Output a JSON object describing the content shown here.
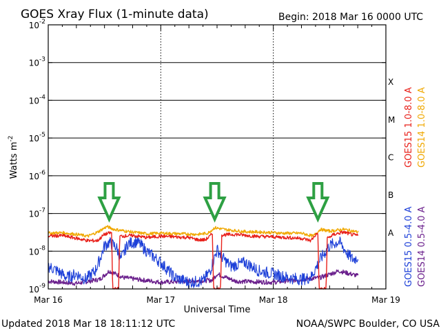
{
  "header": {
    "title": "GOES Xray Flux (1-minute data)",
    "begin": "Begin:  2018 Mar 16 0000 UTC"
  },
  "footer": {
    "updated": "Updated 2018 Mar 18 18:11:12 UTC",
    "source": "NOAA/SWPC Boulder, CO USA"
  },
  "chart_data": {
    "type": "line",
    "title": "GOES Xray Flux (1-minute data)",
    "xlabel": "Universal Time",
    "ylabel": "Watts m",
    "ylabel_exponent": "-2",
    "yscale": "log",
    "ylim": [
      1e-09,
      0.01
    ],
    "xlim": [
      "2018-03-16T00:00",
      "2018-03-19T00:00"
    ],
    "x_ticks": [
      {
        "t": "2018-03-16T00:00",
        "label": "Mar 16"
      },
      {
        "t": "2018-03-17T00:00",
        "label": "Mar 17"
      },
      {
        "t": "2018-03-18T00:00",
        "label": "Mar 18"
      },
      {
        "t": "2018-03-19T00:00",
        "label": "Mar 19"
      }
    ],
    "y_ticks": [
      {
        "v": 0.01,
        "base": "10",
        "exp": "-2"
      },
      {
        "v": 0.001,
        "base": "10",
        "exp": "-3"
      },
      {
        "v": 0.0001,
        "base": "10",
        "exp": "-4"
      },
      {
        "v": 1e-05,
        "base": "10",
        "exp": "-5"
      },
      {
        "v": 1e-06,
        "base": "10",
        "exp": "-6"
      },
      {
        "v": 1e-07,
        "base": "10",
        "exp": "-7"
      },
      {
        "v": 1e-08,
        "base": "10",
        "exp": "-8"
      },
      {
        "v": 1e-09,
        "base": "10",
        "exp": "-9"
      }
    ],
    "flare_classes": [
      {
        "label": "X",
        "lower": 0.0001,
        "upper": 0.001
      },
      {
        "label": "M",
        "lower": 1e-05,
        "upper": 0.0001
      },
      {
        "label": "C",
        "lower": 1e-06,
        "upper": 1e-05
      },
      {
        "label": "B",
        "lower": 1e-07,
        "upper": 1e-06
      },
      {
        "label": "A",
        "lower": 1e-08,
        "upper": 1e-07
      }
    ],
    "grid": "horizontal lines at each decade, dotted vertical lines at each day",
    "legend_placement": "right, vertical text",
    "arrows": [
      {
        "t": "2018-03-16T13:00",
        "color": "#2ea043"
      },
      {
        "t": "2018-03-17T11:30",
        "color": "#2ea043"
      },
      {
        "t": "2018-03-18T09:30",
        "color": "#2ea043"
      }
    ],
    "series": [
      {
        "name": "GOES15 1.0-8.0 A",
        "color": "#e8201a",
        "points": [
          [
            "2018-03-16T00:00",
            2.5e-08
          ],
          [
            "2018-03-16T03:00",
            2.6e-08
          ],
          [
            "2018-03-16T06:00",
            2.2e-08
          ],
          [
            "2018-03-16T08:30",
            1.9e-08
          ],
          [
            "2018-03-16T10:30",
            1.9e-08
          ],
          [
            "2018-03-16T12:00",
            2.8e-08
          ],
          [
            "2018-03-16T13:30",
            3.1e-08
          ],
          [
            "2018-03-16T13:45",
            1e-09
          ],
          [
            "2018-03-16T15:00",
            1e-09
          ],
          [
            "2018-03-16T15:15",
            2.5e-08
          ],
          [
            "2018-03-16T18:00",
            2.6e-08
          ],
          [
            "2018-03-16T21:00",
            2.3e-08
          ],
          [
            "2018-03-17T00:00",
            2.5e-08
          ],
          [
            "2018-03-17T03:00",
            2.4e-08
          ],
          [
            "2018-03-17T06:00",
            2.3e-08
          ],
          [
            "2018-03-17T08:00",
            2e-08
          ],
          [
            "2018-03-17T09:30",
            2e-08
          ],
          [
            "2018-03-17T10:30",
            2.5e-08
          ],
          [
            "2018-03-17T11:00",
            3e-08
          ],
          [
            "2018-03-17T11:15",
            1e-09
          ],
          [
            "2018-03-17T12:45",
            1e-09
          ],
          [
            "2018-03-17T13:00",
            2.7e-08
          ],
          [
            "2018-03-17T16:00",
            2.8e-08
          ],
          [
            "2018-03-17T20:00",
            2.5e-08
          ],
          [
            "2018-03-18T00:00",
            2.4e-08
          ],
          [
            "2018-03-18T03:00",
            2.3e-08
          ],
          [
            "2018-03-18T06:00",
            2.2e-08
          ],
          [
            "2018-03-18T08:00",
            1.9e-08
          ],
          [
            "2018-03-18T09:00",
            2.7e-08
          ],
          [
            "2018-03-18T09:30",
            3e-08
          ],
          [
            "2018-03-18T09:45",
            1e-09
          ],
          [
            "2018-03-18T11:15",
            1e-09
          ],
          [
            "2018-03-18T11:30",
            2.2e-08
          ],
          [
            "2018-03-18T13:00",
            2.8e-08
          ],
          [
            "2018-03-18T15:00",
            3.2e-08
          ],
          [
            "2018-03-18T17:00",
            2.7e-08
          ],
          [
            "2018-03-18T18:10",
            2.6e-08
          ]
        ]
      },
      {
        "name": "GOES14 1.0-8.0 A",
        "color": "#f0a800",
        "points": [
          [
            "2018-03-16T00:00",
            3e-08
          ],
          [
            "2018-03-16T03:00",
            3.1e-08
          ],
          [
            "2018-03-16T06:00",
            2.8e-08
          ],
          [
            "2018-03-16T08:30",
            2.5e-08
          ],
          [
            "2018-03-16T10:30",
            3.2e-08
          ],
          [
            "2018-03-16T12:30",
            4.5e-08
          ],
          [
            "2018-03-16T14:00",
            3.8e-08
          ],
          [
            "2018-03-16T18:00",
            3.2e-08
          ],
          [
            "2018-03-16T21:00",
            2.9e-08
          ],
          [
            "2018-03-17T00:00",
            3e-08
          ],
          [
            "2018-03-17T04:00",
            2.9e-08
          ],
          [
            "2018-03-17T08:00",
            2.8e-08
          ],
          [
            "2018-03-17T10:00",
            3e-08
          ],
          [
            "2018-03-17T11:30",
            4.2e-08
          ],
          [
            "2018-03-17T14:00",
            3.7e-08
          ],
          [
            "2018-03-17T18:00",
            3.3e-08
          ],
          [
            "2018-03-17T22:00",
            3.2e-08
          ],
          [
            "2018-03-18T02:00",
            3e-08
          ],
          [
            "2018-03-18T06:00",
            3e-08
          ],
          [
            "2018-03-18T08:30",
            2.5e-08
          ],
          [
            "2018-03-18T10:00",
            3.8e-08
          ],
          [
            "2018-03-18T12:00",
            3.4e-08
          ],
          [
            "2018-03-18T15:00",
            3.8e-08
          ],
          [
            "2018-03-18T18:10",
            3.2e-08
          ]
        ]
      },
      {
        "name": "GOES15 0.5-4.0 A",
        "color": "#1c3fd8",
        "points": [
          [
            "2018-03-16T00:00",
            4e-09
          ],
          [
            "2018-03-16T02:00",
            3e-09
          ],
          [
            "2018-03-16T04:00",
            2e-09
          ],
          [
            "2018-03-16T06:00",
            2.5e-09
          ],
          [
            "2018-03-16T08:00",
            1.8e-09
          ],
          [
            "2018-03-16T10:00",
            3e-09
          ],
          [
            "2018-03-16T11:00",
            6e-09
          ],
          [
            "2018-03-16T12:00",
            1.4e-08
          ],
          [
            "2018-03-16T13:00",
            1.7e-08
          ],
          [
            "2018-03-16T14:30",
            1.3e-08
          ],
          [
            "2018-03-16T15:30",
            6e-09
          ],
          [
            "2018-03-16T17:00",
            1.6e-08
          ],
          [
            "2018-03-16T19:00",
            1.8e-08
          ],
          [
            "2018-03-16T21:00",
            1e-08
          ],
          [
            "2018-03-17T00:00",
            5e-09
          ],
          [
            "2018-03-17T03:00",
            2e-09
          ],
          [
            "2018-03-17T06:00",
            1.5e-09
          ],
          [
            "2018-03-17T09:00",
            1.6e-09
          ],
          [
            "2018-03-17T10:30",
            3e-09
          ],
          [
            "2018-03-17T12:00",
            1.1e-08
          ],
          [
            "2018-03-17T13:30",
            6e-09
          ],
          [
            "2018-03-17T15:00",
            4e-09
          ],
          [
            "2018-03-17T18:00",
            5e-09
          ],
          [
            "2018-03-17T21:00",
            3e-09
          ],
          [
            "2018-03-18T00:00",
            2.5e-09
          ],
          [
            "2018-03-18T03:00",
            2e-09
          ],
          [
            "2018-03-18T06:00",
            1.8e-09
          ],
          [
            "2018-03-18T08:00",
            2e-09
          ],
          [
            "2018-03-18T10:00",
            6e-09
          ],
          [
            "2018-03-18T12:00",
            1.4e-08
          ],
          [
            "2018-03-18T14:00",
            1.8e-08
          ],
          [
            "2018-03-18T16:00",
            8e-09
          ],
          [
            "2018-03-18T17:00",
            6e-09
          ],
          [
            "2018-03-18T18:10",
            7e-09
          ]
        ]
      },
      {
        "name": "GOES14 0.5-4.0 A",
        "color": "#6a1f8c",
        "points": [
          [
            "2018-03-16T00:00",
            1.6e-09
          ],
          [
            "2018-03-16T06:00",
            1.4e-09
          ],
          [
            "2018-03-16T11:00",
            1.8e-09
          ],
          [
            "2018-03-16T13:00",
            3e-09
          ],
          [
            "2018-03-16T16:00",
            2e-09
          ],
          [
            "2018-03-17T00:00",
            1.5e-09
          ],
          [
            "2018-03-17T11:00",
            1.7e-09
          ],
          [
            "2018-03-17T12:00",
            2.5e-09
          ],
          [
            "2018-03-17T16:00",
            1.6e-09
          ],
          [
            "2018-03-18T00:00",
            1.5e-09
          ],
          [
            "2018-03-18T10:00",
            2e-09
          ],
          [
            "2018-03-18T14:00",
            3e-09
          ],
          [
            "2018-03-18T18:10",
            2.2e-09
          ]
        ]
      }
    ]
  }
}
